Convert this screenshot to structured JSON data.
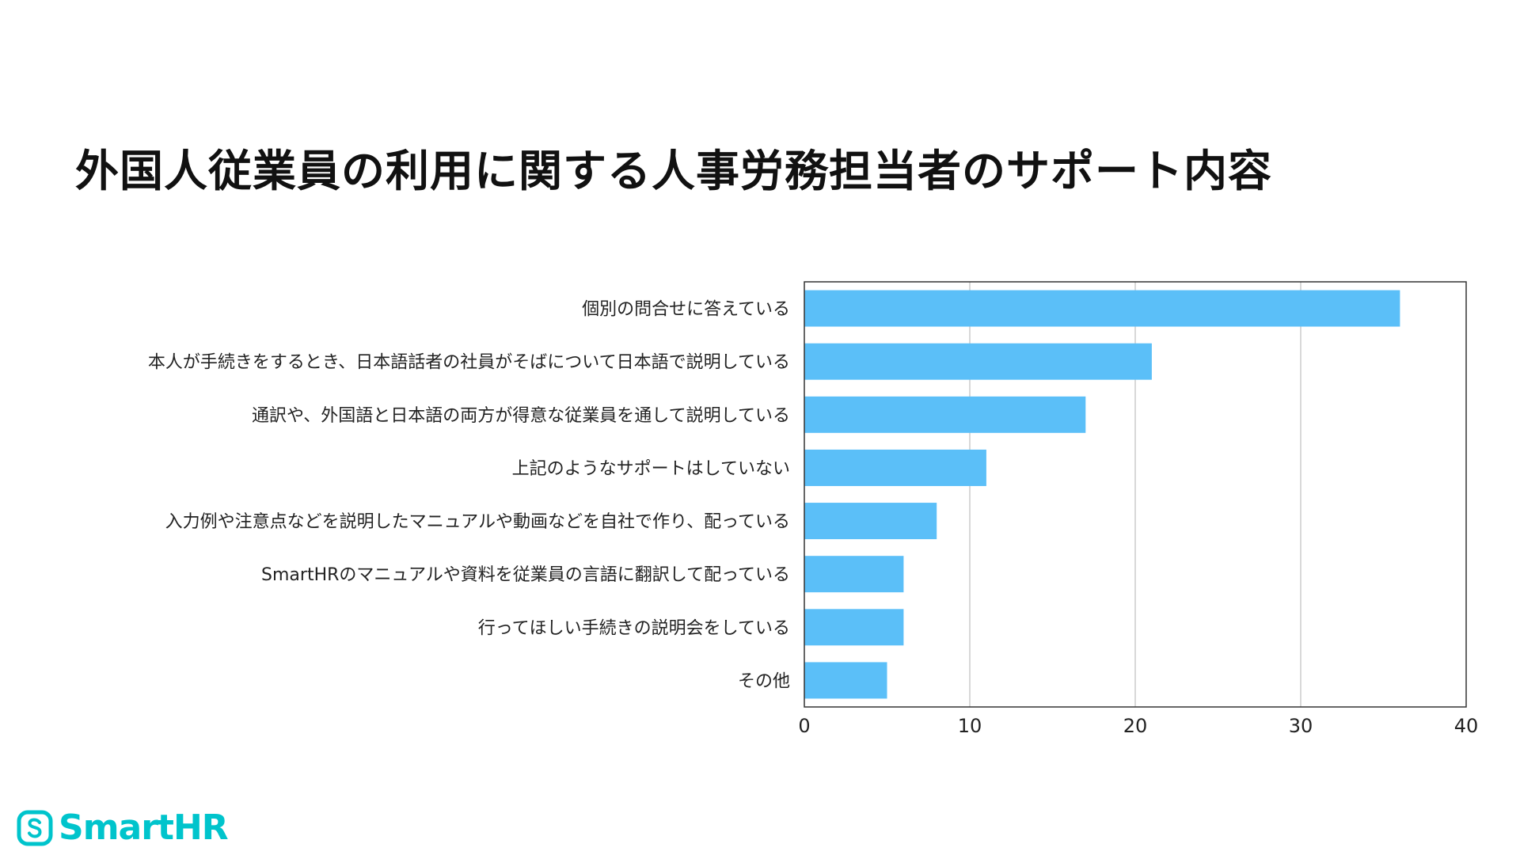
{
  "title": "外国人従業員の利用に関する人事労務担当者のサポート内容",
  "logo": {
    "text": "SmartHR",
    "icon": "smarthr-logo-icon",
    "color": "#00c4cc"
  },
  "chart_data": {
    "type": "bar",
    "orientation": "horizontal",
    "categories": [
      "個別の問合せに答えている",
      "本人が手続きをするとき、日本語話者の社員がそばについて日本語で説明している",
      "通訳や、外国語と日本語の両方が得意な従業員を通して説明している",
      "上記のようなサポートはしていない",
      "入力例や注意点などを説明したマニュアルや動画などを自社で作り、配っている",
      "SmartHRのマニュアルや資料を従業員の言語に翻訳して配っている",
      "行ってほしい手続きの説明会をしている",
      "その他"
    ],
    "values": [
      36,
      21,
      17,
      11,
      8,
      6,
      6,
      5
    ],
    "xlim": [
      0,
      40
    ],
    "xticks": [
      "0",
      "10",
      "20",
      "30",
      "40"
    ],
    "xlabel": "",
    "ylabel": "",
    "grid": true,
    "legend": "none",
    "bar_color": "#5bbff8",
    "grid_color": "#cccccc",
    "frame_color": "#333333"
  }
}
